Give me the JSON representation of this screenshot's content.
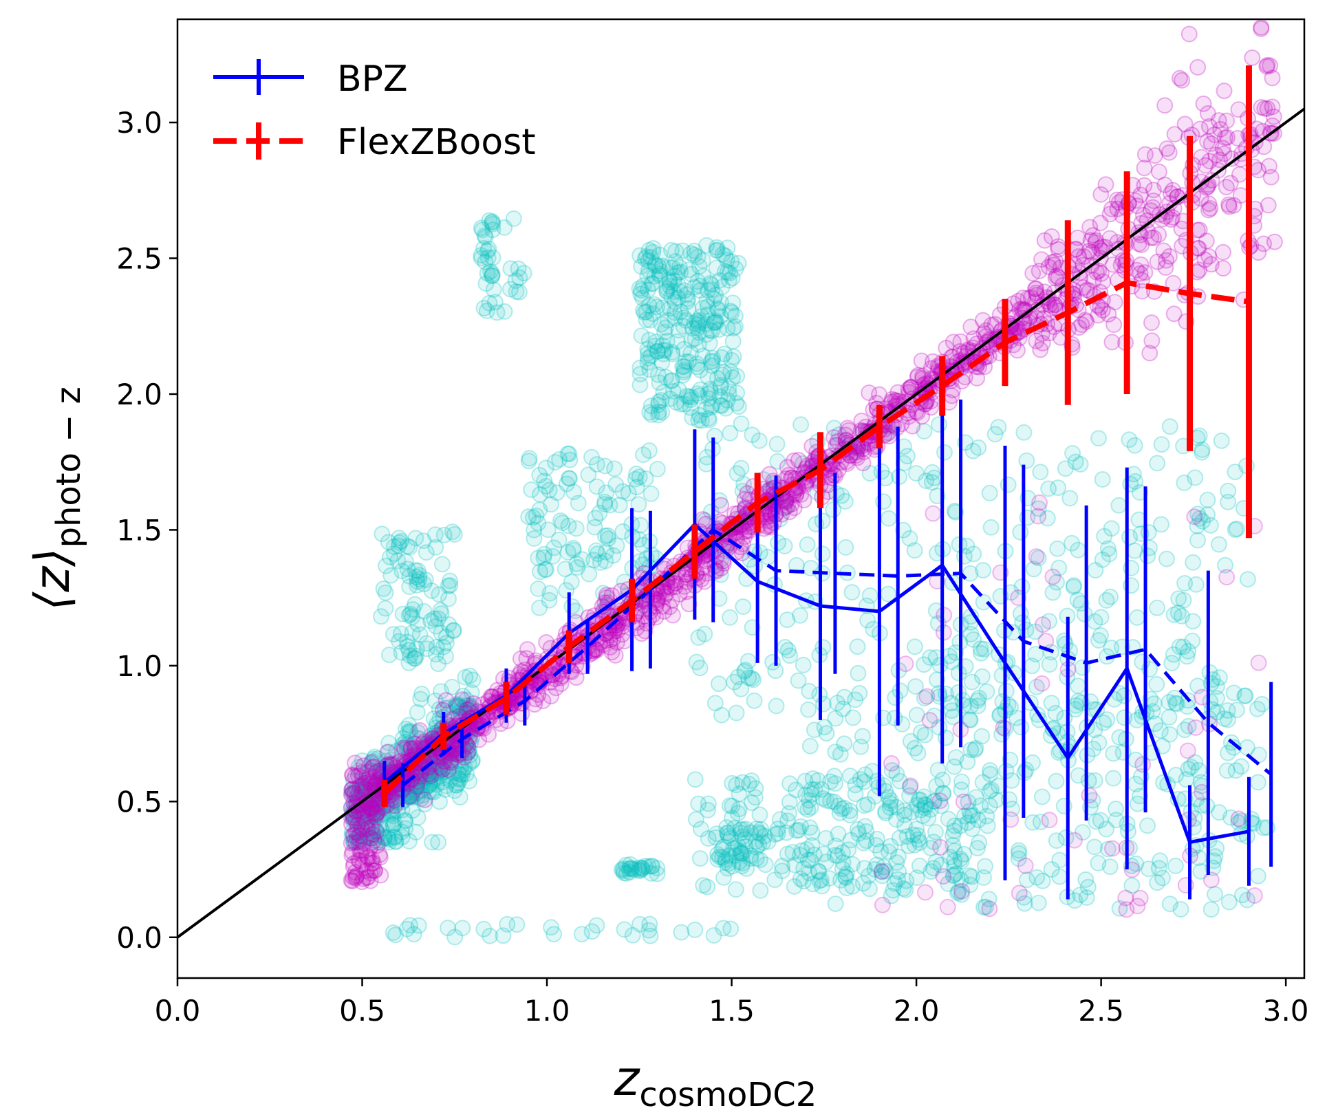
{
  "chart_data": {
    "type": "scatter",
    "xlabel": "z",
    "xlabel_sub": "cosmoDC2",
    "ylabel": "⟨z⟩",
    "ylabel_sub": "photo − z",
    "xlim": [
      0.0,
      3.05
    ],
    "ylim": [
      -0.15,
      3.38
    ],
    "x_ticks": [
      "0.0",
      "0.5",
      "1.0",
      "1.5",
      "2.0",
      "2.5",
      "3.0"
    ],
    "y_ticks": [
      "0.0",
      "0.5",
      "1.0",
      "1.5",
      "2.0",
      "2.5",
      "3.0"
    ],
    "grid": false,
    "legend_position": "top-left",
    "reference_line": {
      "x": [
        0.0,
        3.05
      ],
      "y": [
        0.0,
        3.05
      ],
      "color": "#000000"
    },
    "scatter_layers": [
      {
        "color": "#00bfbf",
        "description": "BPZ individual galaxies (translucent cyan circles)",
        "clusters": [
          {
            "x": [
              0.47,
              0.8
            ],
            "y": [
              0.35,
              1.1
            ]
          },
          {
            "x": [
              0.55,
              0.75
            ],
            "y": [
              1.0,
              1.5
            ]
          },
          {
            "x": [
              0.82,
              0.95
            ],
            "y": [
              2.3,
              2.65
            ]
          },
          {
            "x": [
              1.25,
              1.52
            ],
            "y": [
              1.9,
              2.55
            ]
          },
          {
            "x": [
              0.95,
              1.3
            ],
            "y": [
              1.2,
              1.8
            ]
          },
          {
            "x": [
              1.4,
              2.9
            ],
            "y": [
              0.8,
              1.9
            ]
          },
          {
            "x": [
              1.4,
              2.2
            ],
            "y": [
              0.15,
              0.6
            ]
          },
          {
            "x": [
              1.7,
              2.95
            ],
            "y": [
              0.1,
              0.9
            ]
          },
          {
            "x": [
              0.5,
              1.5
            ],
            "y": [
              0.0,
              0.05
            ]
          },
          {
            "x": [
              1.2,
              1.3
            ],
            "y": [
              0.23,
              0.27
            ]
          },
          {
            "x": [
              1.45,
              1.6
            ],
            "y": [
              0.25,
              0.4
            ]
          }
        ]
      },
      {
        "color": "#bf00bf",
        "description": "FlexZBoost individual galaxies (translucent magenta circles)",
        "band_around": "one-to-one line"
      }
    ],
    "series": [
      {
        "name": "BPZ",
        "color": "#0000ff",
        "linestyle": "solid",
        "x": [
          0.56,
          0.72,
          0.89,
          1.06,
          1.23,
          1.4,
          1.57,
          1.74,
          1.9,
          2.07,
          2.24,
          2.41,
          2.57,
          2.74,
          2.9
        ],
        "y": [
          0.57,
          0.75,
          0.89,
          1.12,
          1.28,
          1.52,
          1.31,
          1.22,
          1.2,
          1.37,
          1.01,
          0.66,
          0.99,
          0.35,
          0.39
        ],
        "yerr": [
          0.08,
          0.08,
          0.1,
          0.15,
          0.3,
          0.35,
          0.3,
          0.42,
          0.68,
          0.73,
          0.8,
          0.52,
          0.74,
          0.21,
          0.2
        ]
      },
      {
        "name": "",
        "color": "#0000ff",
        "linestyle": "dashed",
        "x": [
          0.61,
          0.77,
          0.94,
          1.11,
          1.28,
          1.45,
          1.62,
          1.78,
          1.95,
          2.12,
          2.29,
          2.46,
          2.62,
          2.79,
          2.96
        ],
        "y": [
          0.56,
          0.73,
          0.87,
          1.07,
          1.28,
          1.5,
          1.35,
          1.34,
          1.33,
          1.34,
          1.09,
          1.01,
          1.06,
          0.79,
          0.6
        ],
        "yerr": [
          0.08,
          0.07,
          0.09,
          0.1,
          0.29,
          0.34,
          0.35,
          0.37,
          0.55,
          0.64,
          0.65,
          0.58,
          0.6,
          0.56,
          0.34
        ]
      },
      {
        "name": "FlexZBoost",
        "color": "#ff0000",
        "linestyle": "dashed",
        "x": [
          0.56,
          0.72,
          0.89,
          1.06,
          1.23,
          1.4,
          1.57,
          1.74,
          1.9,
          2.07,
          2.24,
          2.41,
          2.57,
          2.74,
          2.9
        ],
        "y": [
          0.53,
          0.74,
          0.88,
          1.07,
          1.24,
          1.42,
          1.6,
          1.72,
          1.88,
          2.03,
          2.19,
          2.3,
          2.41,
          2.37,
          2.34
        ],
        "yerr": [
          0.05,
          0.05,
          0.06,
          0.06,
          0.08,
          0.1,
          0.11,
          0.14,
          0.08,
          0.11,
          0.16,
          0.34,
          0.41,
          0.58,
          0.87
        ]
      }
    ]
  }
}
